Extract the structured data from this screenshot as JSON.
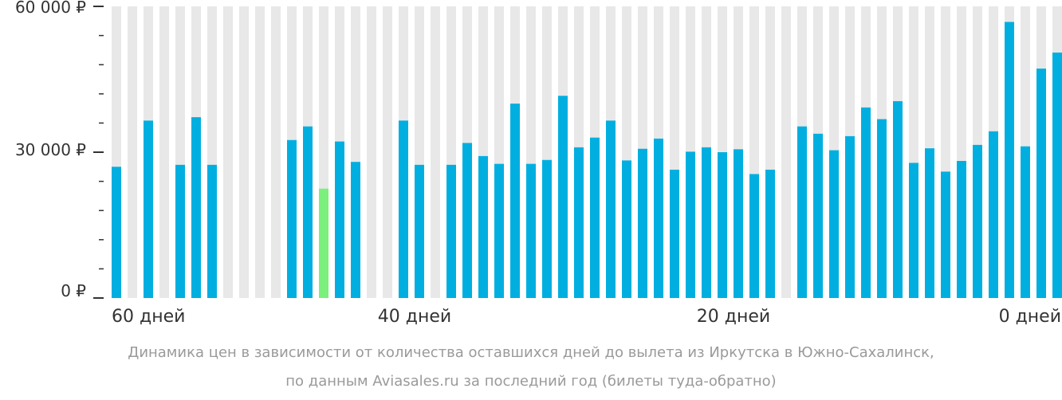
{
  "chart_data": {
    "type": "bar",
    "x_tick_labels": [
      "60 дней",
      "40 дней",
      "20 дней",
      "0 дней"
    ],
    "y_tick_labels": [
      "60 000 ₽",
      "30 000 ₽",
      "0 ₽"
    ],
    "ylim": [
      0,
      60000
    ],
    "grid": true,
    "highlight_color": "#7cf07c",
    "bar_color": "#00afe0",
    "background_stripe_color": "#e8e8e8",
    "bars": [
      {
        "day": 60,
        "value": 27000
      },
      {
        "day": 59,
        "value": null
      },
      {
        "day": 58,
        "value": 36500
      },
      {
        "day": 57,
        "value": null
      },
      {
        "day": 56,
        "value": 27400
      },
      {
        "day": 55,
        "value": 37200
      },
      {
        "day": 54,
        "value": 27400
      },
      {
        "day": 53,
        "value": null
      },
      {
        "day": 52,
        "value": null
      },
      {
        "day": 51,
        "value": null
      },
      {
        "day": 50,
        "value": null
      },
      {
        "day": 49,
        "value": 32500
      },
      {
        "day": 48,
        "value": 35300
      },
      {
        "day": 47,
        "value": 22500,
        "highlight": true
      },
      {
        "day": 46,
        "value": 32200
      },
      {
        "day": 45,
        "value": 28000
      },
      {
        "day": 44,
        "value": null
      },
      {
        "day": 43,
        "value": null
      },
      {
        "day": 42,
        "value": 36500
      },
      {
        "day": 41,
        "value": 27400
      },
      {
        "day": 40,
        "value": null
      },
      {
        "day": 39,
        "value": 27400
      },
      {
        "day": 38,
        "value": 31900
      },
      {
        "day": 37,
        "value": 29200
      },
      {
        "day": 36,
        "value": 27600
      },
      {
        "day": 35,
        "value": 40000
      },
      {
        "day": 34,
        "value": 27600
      },
      {
        "day": 33,
        "value": 28400
      },
      {
        "day": 32,
        "value": 41600
      },
      {
        "day": 31,
        "value": 31000
      },
      {
        "day": 30,
        "value": 33000
      },
      {
        "day": 29,
        "value": 36500
      },
      {
        "day": 28,
        "value": 28300
      },
      {
        "day": 27,
        "value": 30700
      },
      {
        "day": 26,
        "value": 32800
      },
      {
        "day": 25,
        "value": 26400
      },
      {
        "day": 24,
        "value": 30100
      },
      {
        "day": 23,
        "value": 31000
      },
      {
        "day": 22,
        "value": 30000
      },
      {
        "day": 21,
        "value": 30600
      },
      {
        "day": 20,
        "value": 25500
      },
      {
        "day": 19,
        "value": 26400
      },
      {
        "day": 18,
        "value": null
      },
      {
        "day": 17,
        "value": 35300
      },
      {
        "day": 16,
        "value": 33800
      },
      {
        "day": 15,
        "value": 30400
      },
      {
        "day": 14,
        "value": 33300
      },
      {
        "day": 13,
        "value": 39200
      },
      {
        "day": 12,
        "value": 36800
      },
      {
        "day": 11,
        "value": 40500
      },
      {
        "day": 10,
        "value": 27800
      },
      {
        "day": 9,
        "value": 30800
      },
      {
        "day": 8,
        "value": 26000
      },
      {
        "day": 7,
        "value": 28200
      },
      {
        "day": 6,
        "value": 31500
      },
      {
        "day": 5,
        "value": 34300
      },
      {
        "day": 4,
        "value": 56800
      },
      {
        "day": 3,
        "value": 31200
      },
      {
        "day": 2,
        "value": 47200
      },
      {
        "day": 1,
        "value": 50500
      }
    ]
  },
  "caption": {
    "line1": "Динамика цен в зависимости от количества оставшихся дней до вылета из Иркутска в Южно-Сахалинск,",
    "line2": "по данным Aviasales.ru за последний год (билеты туда-обратно)"
  }
}
